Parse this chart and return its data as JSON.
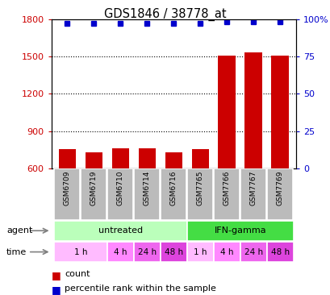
{
  "title": "GDS1846 / 38778_at",
  "samples": [
    "GSM6709",
    "GSM6719",
    "GSM6710",
    "GSM6714",
    "GSM6716",
    "GSM7765",
    "GSM7766",
    "GSM7767",
    "GSM7769"
  ],
  "counts": [
    755,
    730,
    760,
    765,
    730,
    755,
    1510,
    1530,
    1510
  ],
  "percentile_ranks": [
    97,
    97,
    97,
    97,
    97,
    97,
    98,
    98,
    98
  ],
  "ylim_left": [
    600,
    1800
  ],
  "ylim_right": [
    0,
    100
  ],
  "yticks_left": [
    600,
    900,
    1200,
    1500,
    1800
  ],
  "yticks_right": [
    0,
    25,
    50,
    75,
    100
  ],
  "bar_color": "#cc0000",
  "dot_color": "#0000cc",
  "agent_groups": [
    {
      "label": "untreated",
      "start": 0,
      "end": 5,
      "color": "#bbffbb"
    },
    {
      "label": "IFN-gamma",
      "start": 5,
      "end": 9,
      "color": "#44dd44"
    }
  ],
  "time_groups": [
    {
      "label": "1 h",
      "start": 0,
      "end": 2,
      "color": "#ffbbff"
    },
    {
      "label": "4 h",
      "start": 2,
      "end": 3,
      "color": "#ff88ff"
    },
    {
      "label": "24 h",
      "start": 3,
      "end": 4,
      "color": "#ee66ee"
    },
    {
      "label": "48 h",
      "start": 4,
      "end": 5,
      "color": "#dd44dd"
    },
    {
      "label": "1 h",
      "start": 5,
      "end": 6,
      "color": "#ffbbff"
    },
    {
      "label": "4 h",
      "start": 6,
      "end": 7,
      "color": "#ff88ff"
    },
    {
      "label": "24 h",
      "start": 7,
      "end": 8,
      "color": "#ee66ee"
    },
    {
      "label": "48 h",
      "start": 8,
      "end": 9,
      "color": "#dd44dd"
    }
  ],
  "left_label_color": "#cc0000",
  "right_label_color": "#0000cc",
  "sample_box_color": "#bbbbbb",
  "dot_size": 5
}
